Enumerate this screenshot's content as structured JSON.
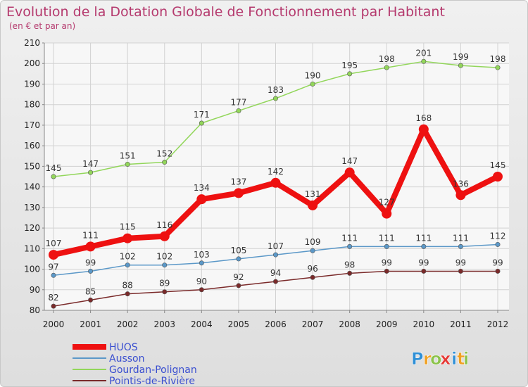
{
  "chart_data": {
    "type": "line",
    "title": "Evolution de la Dotation Globale de Fonctionnement par Habitant",
    "subtitle": "(en € et par an)",
    "xlabel": "",
    "ylabel": "",
    "x": [
      "2000",
      "2001",
      "2002",
      "2003",
      "2004",
      "2005",
      "2006",
      "2007",
      "2008",
      "2009",
      "2010",
      "2011",
      "2012"
    ],
    "ylim": [
      80,
      210
    ],
    "yticks": [
      80,
      90,
      100,
      110,
      120,
      130,
      140,
      150,
      160,
      170,
      180,
      190,
      200,
      210
    ],
    "grid": true,
    "legend_position": "bottom-left",
    "series": [
      {
        "name": "HUOS",
        "color": "#ee1111",
        "values": [
          107,
          111,
          115,
          116,
          134,
          137,
          142,
          131,
          147,
          127,
          168,
          136,
          145
        ]
      },
      {
        "name": "Ausson",
        "color": "#5b98c8",
        "values": [
          97,
          99,
          102,
          102,
          103,
          105,
          107,
          109,
          111,
          111,
          111,
          111,
          112
        ]
      },
      {
        "name": "Gourdan-Polignan",
        "color": "#92d65a",
        "values": [
          145,
          147,
          151,
          152,
          171,
          177,
          183,
          190,
          195,
          198,
          201,
          199,
          198
        ]
      },
      {
        "name": "Pointis-de-Rivière",
        "color": "#7a2a2a",
        "values": [
          82,
          85,
          88,
          89,
          90,
          92,
          94,
          96,
          98,
          99,
          99,
          99,
          99
        ]
      }
    ]
  },
  "logo": {
    "text": "Proxiti",
    "letters": [
      "P",
      "r",
      "o",
      "x",
      "i",
      "t",
      "i"
    ],
    "colors": [
      "#2e8fd6",
      "#f0a020",
      "#8bc34a",
      "#e53935",
      "#2e8fd6",
      "#f0a020",
      "#8bc34a"
    ]
  }
}
